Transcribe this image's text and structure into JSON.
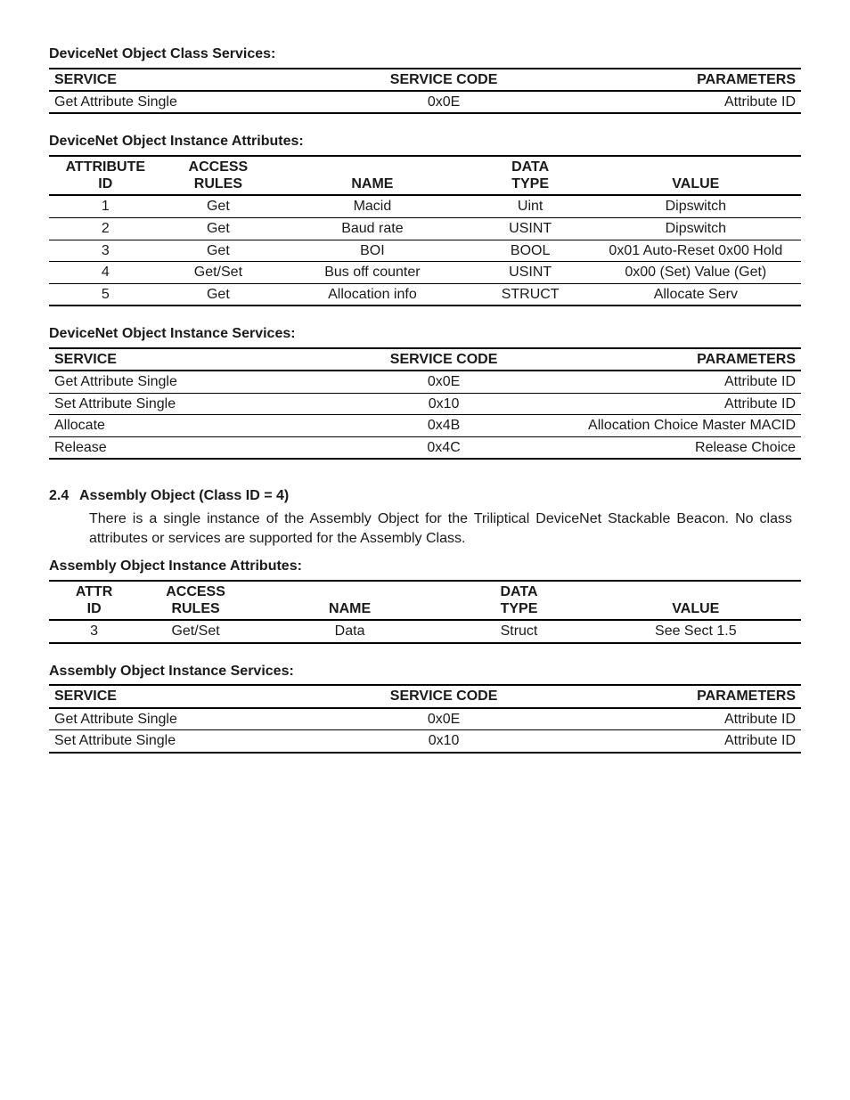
{
  "sec1": {
    "title": "DeviceNet Object Class Services:",
    "columns": [
      "SERVICE",
      "SERVICE CODE",
      "PARAMETERS"
    ],
    "aligns": [
      "al-l",
      "al-c",
      "al-r"
    ],
    "col_widths": [
      "40%",
      "25%",
      "35%"
    ],
    "rows": [
      [
        "Get Attribute Single",
        "0x0E",
        "Attribute ID"
      ]
    ]
  },
  "sec2": {
    "title": "DeviceNet Object Instance Attributes:",
    "columns_top": [
      "ATTRIBUTE",
      "ACCESS",
      "",
      "DATA",
      ""
    ],
    "columns_bottom": [
      "ID",
      "RULES",
      "NAME",
      "TYPE",
      "VALUE"
    ],
    "aligns": [
      "al-c",
      "al-c",
      "al-c",
      "al-c",
      "al-c"
    ],
    "col_widths": [
      "15%",
      "15%",
      "26%",
      "16%",
      "28%"
    ],
    "rows": [
      [
        "1",
        "Get",
        "Macid",
        "Uint",
        "Dipswitch"
      ],
      [
        "2",
        "Get",
        "Baud rate",
        "USINT",
        "Dipswitch"
      ],
      [
        "3",
        "Get",
        "BOI",
        "BOOL",
        "0x01 Auto-Reset 0x00 Hold"
      ],
      [
        "4",
        "Get/Set",
        "Bus off counter",
        "USINT",
        "0x00 (Set) Value (Get)"
      ],
      [
        "5",
        "Get",
        "Allocation info",
        "STRUCT",
        "Allocate Serv"
      ]
    ]
  },
  "sec3": {
    "title": "DeviceNet Object Instance Services:",
    "columns": [
      "SERVICE",
      "SERVICE CODE",
      "PARAMETERS"
    ],
    "aligns": [
      "al-l",
      "al-c",
      "al-r"
    ],
    "col_widths": [
      "40%",
      "25%",
      "35%"
    ],
    "rows": [
      [
        "Get Attribute Single",
        "0x0E",
        "Attribute ID"
      ],
      [
        "Set Attribute Single",
        "0x10",
        "Attribute ID"
      ],
      [
        "Allocate",
        "0x4B",
        "Allocation Choice Master MACID"
      ],
      [
        "Release",
        "0x4C",
        "Release Choice"
      ]
    ]
  },
  "heading": {
    "num": "2.4",
    "text": "Assembly Object (Class ID = 4)"
  },
  "body": "There is a single instance of the Assembly Object for the Triliptical DeviceNet Stackable Beacon.  No class attributes or services are supported for the Assembly Class.",
  "sec4": {
    "title": "Assembly Object Instance Attributes:",
    "columns_top": [
      "ATTR",
      "ACCESS",
      "",
      "DATA",
      ""
    ],
    "columns_bottom": [
      "ID",
      "RULES",
      "NAME",
      "TYPE",
      "VALUE"
    ],
    "aligns": [
      "al-c",
      "al-c",
      "al-c",
      "al-c",
      "al-c"
    ],
    "col_widths": [
      "12%",
      "15%",
      "26%",
      "19%",
      "28%"
    ],
    "rows": [
      [
        "3",
        "Get/Set",
        "Data",
        "Struct",
        "See Sect 1.5"
      ]
    ]
  },
  "sec5": {
    "title": "Assembly Object Instance Services:",
    "columns": [
      "SERVICE",
      "SERVICE CODE",
      "PARAMETERS"
    ],
    "aligns": [
      "al-l",
      "al-c",
      "al-r"
    ],
    "col_widths": [
      "40%",
      "25%",
      "35%"
    ],
    "rows": [
      [
        "Get Attribute Single",
        "0x0E",
        "Attribute ID"
      ],
      [
        "Set Attribute Single",
        "0x10",
        "Attribute ID"
      ]
    ]
  }
}
